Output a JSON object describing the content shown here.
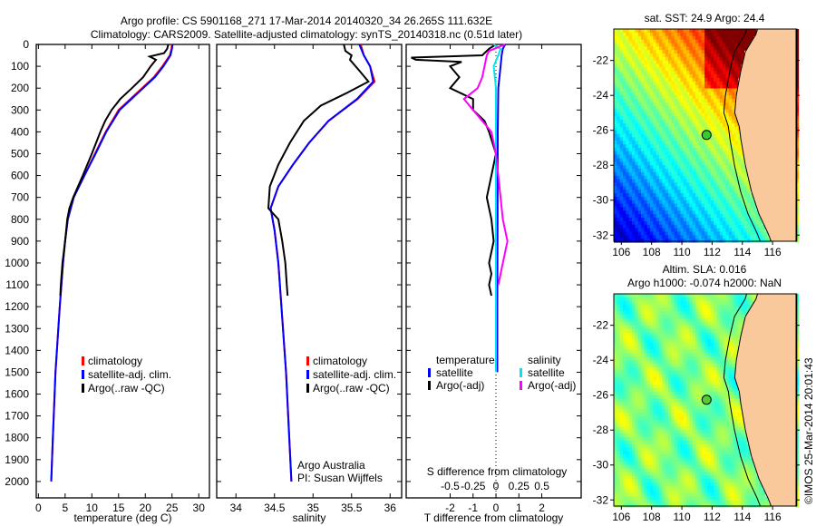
{
  "title": {
    "line1": "Argo profile: CS 5901168_271 17-Mar-2014 20140320_34 26.265S 111.632E",
    "line2": "Climatology: CARS2009. Satellite-adjusted climatology: synTS_20140318.nc (0.51d later)"
  },
  "colors": {
    "climatology": "#ff0000",
    "satellite": "#0000ff",
    "argo": "#000000",
    "salt_sat": "#00e5ee",
    "salt_argo": "#ff00ff",
    "land": "#f9c99b"
  },
  "chart_data": [
    {
      "type": "line",
      "id": "temperature",
      "xlabel": "temperature (deg C)",
      "ylabel": "",
      "xlim": [
        -0.4,
        32
      ],
      "ylim": [
        0,
        2075
      ],
      "xticks": [
        0,
        5,
        10,
        15,
        20,
        25,
        30
      ],
      "yticks": [
        0,
        100,
        200,
        300,
        400,
        500,
        600,
        700,
        800,
        900,
        1000,
        1100,
        1200,
        1300,
        1400,
        1500,
        1600,
        1700,
        1800,
        1900,
        2000
      ],
      "legend": [
        "climatology",
        "satellite-adj. clim.",
        "Argo(..raw -QC)"
      ],
      "series": [
        {
          "name": "climatology",
          "color": "#ff0000",
          "depth": [
            0,
            20,
            50,
            100,
            150,
            200,
            300,
            400,
            500,
            600,
            700,
            800,
            900,
            1000,
            1200,
            1500,
            1800,
            2000
          ],
          "values": [
            25,
            24.9,
            24.6,
            23.2,
            21.6,
            19.4,
            15,
            12.6,
            10.6,
            8.6,
            6.6,
            5.5,
            5,
            4.6,
            4,
            3.2,
            2.7,
            2.4
          ]
        },
        {
          "name": "satellite-adj. clim.",
          "color": "#0000ff",
          "depth": [
            0,
            20,
            50,
            100,
            150,
            200,
            300,
            400,
            500,
            600,
            700,
            800,
            900,
            1000,
            1200,
            1500,
            1800,
            2000
          ],
          "values": [
            25.1,
            25,
            24.7,
            23.4,
            21.8,
            19.6,
            15.2,
            12.7,
            10.7,
            8.6,
            6.6,
            5.5,
            5,
            4.6,
            4,
            3.2,
            2.7,
            2.4
          ]
        },
        {
          "name": "Argo(..raw -QC)",
          "color": "#000000",
          "depth": [
            0,
            20,
            40,
            55,
            70,
            100,
            150,
            200,
            250,
            300,
            350,
            400,
            500,
            600,
            700,
            750,
            800,
            900,
            1000,
            1100,
            1150
          ],
          "values": [
            24.3,
            24.1,
            23.5,
            20.8,
            22,
            21,
            19.6,
            17.5,
            15.3,
            13.7,
            12.5,
            11.6,
            10,
            8.3,
            6.5,
            5.8,
            5.4,
            5,
            4.5,
            4.2,
            4.1
          ]
        }
      ]
    },
    {
      "type": "line",
      "id": "salinity",
      "xlabel": "salinity",
      "xlim": [
        33.75,
        36.15
      ],
      "ylim": [
        0,
        2075
      ],
      "xticks": [
        34,
        34.5,
        35,
        35.5,
        36
      ],
      "legend": [
        "climatology",
        "satellite-adj. clim.",
        "Argo(..raw -QC)"
      ],
      "annotation": [
        "Argo Australia",
        "PI: Susan Wijffels"
      ],
      "series": [
        {
          "name": "climatology",
          "color": "#ff0000",
          "depth": [
            0,
            50,
            100,
            170,
            250,
            350,
            450,
            550,
            650,
            750,
            850,
            1000,
            1500,
            2000
          ],
          "values": [
            35.62,
            35.66,
            35.74,
            35.8,
            35.58,
            35.2,
            34.95,
            34.74,
            34.55,
            34.45,
            34.5,
            34.55,
            34.65,
            34.72
          ]
        },
        {
          "name": "satellite-adj. clim.",
          "color": "#0000ff",
          "depth": [
            0,
            50,
            100,
            170,
            250,
            350,
            450,
            550,
            650,
            750,
            850,
            1000,
            1500,
            2000
          ],
          "values": [
            35.6,
            35.66,
            35.74,
            35.78,
            35.57,
            35.2,
            34.95,
            34.74,
            34.55,
            34.45,
            34.5,
            34.55,
            34.65,
            34.72
          ]
        },
        {
          "name": "Argo(..raw -QC)",
          "color": "#000000",
          "depth": [
            0,
            30,
            50,
            70,
            120,
            170,
            220,
            280,
            350,
            450,
            550,
            650,
            750,
            800,
            900,
            1000,
            1100,
            1150
          ],
          "values": [
            35.4,
            35.42,
            35.5,
            35.48,
            35.6,
            35.72,
            35.45,
            35.1,
            34.88,
            34.7,
            34.55,
            34.44,
            34.42,
            34.55,
            34.6,
            34.64,
            34.66,
            34.67
          ]
        }
      ]
    },
    {
      "type": "line",
      "id": "differences",
      "xlabel": "T difference from climatology",
      "xlabel2": "S difference from climatology",
      "xlim": [
        -3.92,
        3.72
      ],
      "ylim": [
        0,
        2075
      ],
      "xticks": [
        -2,
        -1,
        0,
        1,
        2
      ],
      "xticks2": [
        "-0.5",
        "-0.25",
        "0",
        "0.25",
        "0.5"
      ],
      "legend_temperature": {
        "title": "temperature",
        "items": [
          "satellite",
          "Argo(-adj)"
        ]
      },
      "legend_salinity": {
        "title": "salinity",
        "items": [
          "satellite",
          "Argo(-adj)"
        ]
      },
      "series": [
        {
          "name": "temperature satellite",
          "color": "#0000ff",
          "depth": [
            0,
            20,
            50,
            100,
            200,
            400,
            800,
            1200,
            1500
          ],
          "values": [
            0.4,
            0.3,
            0.25,
            0.2,
            0.1,
            0.08,
            0.07,
            0.06,
            0.06
          ]
        },
        {
          "name": "temperature Argo(-adj)",
          "color": "#000000",
          "depth": [
            0,
            20,
            50,
            60,
            70,
            80,
            100,
            150,
            200,
            250,
            300,
            350,
            400,
            500,
            600,
            700,
            800,
            900,
            1000,
            1050,
            1100,
            1150
          ],
          "values": [
            0,
            -0.3,
            -0.6,
            -3.7,
            -3.5,
            -1.5,
            -2,
            -1.6,
            -2,
            -1,
            -1,
            -0.5,
            -0.3,
            0,
            -0.2,
            -0.4,
            -0.2,
            -0.1,
            -0.3,
            -0.2,
            -0.3,
            -0.2
          ]
        },
        {
          "name": "salinity satellite",
          "color": "#00e5ee",
          "depth": [
            0,
            20,
            50,
            100,
            200,
            400,
            800,
            1200,
            1500
          ],
          "values": [
            -0.1,
            0.2,
            0.1,
            -0.1,
            0,
            0,
            0,
            0,
            0
          ]
        },
        {
          "name": "salinity Argo(-adj)",
          "color": "#ff00ff",
          "depth": [
            0,
            30,
            50,
            100,
            150,
            200,
            250,
            300,
            350,
            400,
            500,
            600,
            700,
            800,
            850,
            900,
            1000,
            1100
          ],
          "values": [
            0.4,
            -0.3,
            -0.4,
            -0.5,
            -0.6,
            -0.8,
            -1.4,
            -1,
            -0.6,
            -0.2,
            0,
            0.1,
            0.2,
            0.3,
            0.4,
            0.5,
            0.3,
            0.1
          ]
        }
      ]
    },
    {
      "type": "heatmap",
      "id": "sst-map",
      "title": "sat. SST: 24.9 Argo: 24.4",
      "xlim": [
        105.5,
        117.55
      ],
      "ylim": [
        -32.35,
        -20.2
      ],
      "xticks": [
        106,
        108,
        110,
        112,
        114,
        116
      ],
      "yticks": [
        -22,
        -24,
        -26,
        -28,
        -30,
        -32
      ],
      "argo_position": {
        "lon": 111.632,
        "lat": -26.265
      }
    },
    {
      "type": "heatmap",
      "id": "sla-map",
      "title": "Altim. SLA: 0.016",
      "subtitle": "Argo h1000: -0.074 h2000: NaN",
      "xlim": [
        105.5,
        117.55
      ],
      "ylim": [
        -32.35,
        -20.2
      ],
      "xticks": [
        106,
        108,
        110,
        112,
        114,
        116
      ],
      "yticks": [
        -22,
        -24,
        -26,
        -28,
        -30,
        -32
      ],
      "argo_position": {
        "lon": 111.632,
        "lat": -26.265
      }
    }
  ],
  "coastline": [
    [
      115.0,
      -20.2
    ],
    [
      114.9,
      -20.5
    ],
    [
      114.2,
      -21.5
    ],
    [
      113.9,
      -22.6
    ],
    [
      113.6,
      -24.0
    ],
    [
      113.5,
      -25.0
    ],
    [
      113.8,
      -25.8
    ],
    [
      113.9,
      -26.5
    ],
    [
      114.2,
      -28.0
    ],
    [
      114.6,
      -29.5
    ],
    [
      115.1,
      -30.8
    ],
    [
      115.7,
      -31.9
    ],
    [
      115.9,
      -32.35
    ],
    [
      117.6,
      -32.35
    ],
    [
      117.6,
      -20.2
    ]
  ],
  "side_label": "©IMOS 25-Mar-2014 20:01:43"
}
